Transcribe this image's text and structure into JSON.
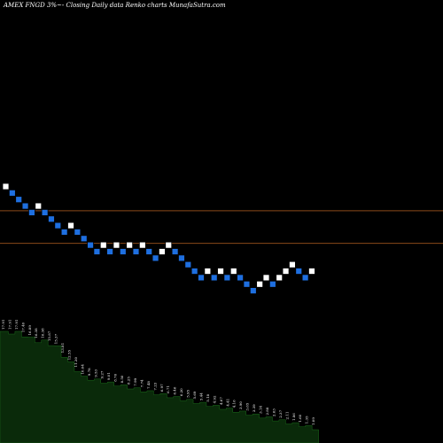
{
  "header": {
    "title": "AMEX  FNGD 3%~- Closing Daily data  Renko  charts MunafaSutra.com"
  },
  "colors": {
    "background": "#000000",
    "up_brick": "#ffffff",
    "down_brick": "#1e6fe0",
    "brick_edge": "#000000",
    "hline": "#8a4a1a",
    "volume_fill": "#0a2a0a",
    "volume_line": "#1a6a1a",
    "label": "#ffffff"
  },
  "chart_data": {
    "type": "renko",
    "y_axis": "hidden",
    "bricks": [
      {
        "i": 0,
        "level": 0,
        "dir": "up"
      },
      {
        "i": 1,
        "level": -1,
        "dir": "down"
      },
      {
        "i": 2,
        "level": -2,
        "dir": "down"
      },
      {
        "i": 3,
        "level": -3,
        "dir": "down"
      },
      {
        "i": 4,
        "level": -4,
        "dir": "down"
      },
      {
        "i": 5,
        "level": -3,
        "dir": "up"
      },
      {
        "i": 6,
        "level": -4,
        "dir": "down"
      },
      {
        "i": 7,
        "level": -5,
        "dir": "down"
      },
      {
        "i": 8,
        "level": -6,
        "dir": "down"
      },
      {
        "i": 9,
        "level": -7,
        "dir": "down"
      },
      {
        "i": 10,
        "level": -6,
        "dir": "up"
      },
      {
        "i": 11,
        "level": -7,
        "dir": "down"
      },
      {
        "i": 12,
        "level": -8,
        "dir": "down"
      },
      {
        "i": 13,
        "level": -9,
        "dir": "down"
      },
      {
        "i": 14,
        "level": -10,
        "dir": "down"
      },
      {
        "i": 15,
        "level": -9,
        "dir": "up"
      },
      {
        "i": 16,
        "level": -10,
        "dir": "down"
      },
      {
        "i": 17,
        "level": -9,
        "dir": "up"
      },
      {
        "i": 18,
        "level": -10,
        "dir": "down"
      },
      {
        "i": 19,
        "level": -9,
        "dir": "up"
      },
      {
        "i": 20,
        "level": -10,
        "dir": "down"
      },
      {
        "i": 21,
        "level": -9,
        "dir": "up"
      },
      {
        "i": 22,
        "level": -10,
        "dir": "down"
      },
      {
        "i": 23,
        "level": -11,
        "dir": "down"
      },
      {
        "i": 24,
        "level": -10,
        "dir": "up"
      },
      {
        "i": 25,
        "level": -9,
        "dir": "up"
      },
      {
        "i": 26,
        "level": -10,
        "dir": "down"
      },
      {
        "i": 27,
        "level": -11,
        "dir": "down"
      },
      {
        "i": 28,
        "level": -12,
        "dir": "down"
      },
      {
        "i": 29,
        "level": -13,
        "dir": "down"
      },
      {
        "i": 30,
        "level": -14,
        "dir": "down"
      },
      {
        "i": 31,
        "level": -13,
        "dir": "up"
      },
      {
        "i": 32,
        "level": -14,
        "dir": "down"
      },
      {
        "i": 33,
        "level": -13,
        "dir": "up"
      },
      {
        "i": 34,
        "level": -14,
        "dir": "down"
      },
      {
        "i": 35,
        "level": -13,
        "dir": "up"
      },
      {
        "i": 36,
        "level": -14,
        "dir": "down"
      },
      {
        "i": 37,
        "level": -15,
        "dir": "down"
      },
      {
        "i": 38,
        "level": -16,
        "dir": "down"
      },
      {
        "i": 39,
        "level": -15,
        "dir": "up"
      },
      {
        "i": 40,
        "level": -14,
        "dir": "up"
      },
      {
        "i": 41,
        "level": -15,
        "dir": "down"
      },
      {
        "i": 42,
        "level": -14,
        "dir": "up"
      },
      {
        "i": 43,
        "level": -13,
        "dir": "up"
      },
      {
        "i": 44,
        "level": -12,
        "dir": "up"
      },
      {
        "i": 45,
        "level": -13,
        "dir": "down"
      },
      {
        "i": 46,
        "level": -14,
        "dir": "down"
      },
      {
        "i": 47,
        "level": -13,
        "dir": "up"
      }
    ],
    "reference_lines": [
      {
        "level": -4.2
      },
      {
        "level": -9.2
      }
    ],
    "labels": [
      "17.91",
      "17.91",
      "17.91",
      "17.40",
      "16.89",
      "16.38",
      "16.38",
      "15.87",
      "15.37",
      "13.81",
      "12.55",
      "11.30",
      "10.04",
      "9.78",
      "9.53",
      "9.27",
      "9.01",
      "8.76",
      "8.50",
      "8.25",
      "7.99",
      "7.74",
      "7.48",
      "7.23",
      "6.97",
      "6.71",
      "6.46",
      "6.20",
      "5.95",
      "5.69",
      "5.44",
      "5.18",
      "4.92",
      "4.67",
      "4.41",
      "4.16",
      "3.90",
      "3.65",
      "3.39",
      "3.14",
      "2.88",
      "2.63",
      "2.37",
      "2.11",
      "1.86",
      "1.60",
      "1.35",
      "1.09"
    ]
  }
}
